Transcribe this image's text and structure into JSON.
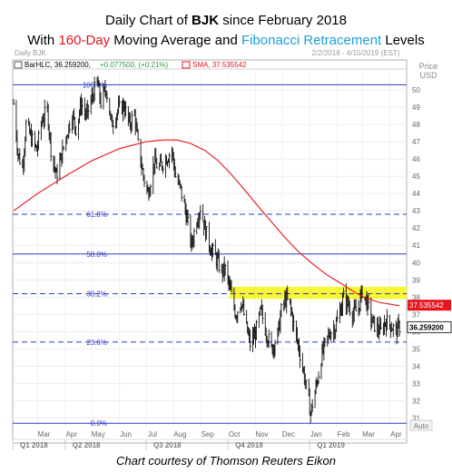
{
  "title": {
    "line1_prefix": "Daily Chart of ",
    "ticker": "BJK",
    "line1_suffix": " since February 2018",
    "line2_prefix": "With ",
    "sma_label": "160-Day",
    "line2_mid": " Moving Average and ",
    "fib_label": "Fibonacci Retracement",
    "line2_suffix": " Levels",
    "red_color": "#e8141c",
    "blue_color": "#1f9ed8"
  },
  "panel": {
    "name": "Daily BJK",
    "date_range": "2/2/2018 - 4/15/2019 (EST)",
    "price_header": "Price",
    "currency": "USD",
    "auto": "Auto"
  },
  "legend": {
    "series": "BarHLC, 36.259200, ",
    "change": "+0.077500, (+0.21%)",
    "sma": "SMA, 37.535542"
  },
  "caption": "Chart courtesy of Thomson Reuters Eikon",
  "chart_data": {
    "type": "line",
    "y_ticks": [
      31,
      32,
      33,
      34,
      35,
      36,
      37,
      38,
      39,
      40,
      41,
      42,
      43,
      44,
      45,
      46,
      47,
      48,
      49,
      50
    ],
    "ylim": [
      30.5,
      51
    ],
    "x_months": [
      "Mar",
      "Apr",
      "May",
      "Jun",
      "Jul",
      "Aug",
      "Sep",
      "Oct",
      "Nov",
      "Dec",
      "Jan",
      "Feb",
      "Mar",
      "Apr"
    ],
    "x_quarters": [
      "Q1 2018",
      "Q2 2018",
      "Q3 2018",
      "Q4 2018",
      "Q1 2019"
    ],
    "fib_levels": [
      {
        "label": "100.0%",
        "value": 50.3
      },
      {
        "label": "61.8%",
        "value": 42.8
      },
      {
        "label": "50.0%",
        "value": 40.5
      },
      {
        "label": "38.2%",
        "value": 38.2
      },
      {
        "label": "23.6%",
        "value": 35.4
      },
      {
        "label": "0.0%",
        "value": 30.7
      }
    ],
    "highlight_zone": [
      37.9,
      38.6
    ],
    "last_price": 36.2592,
    "sma_last": 37.535542,
    "price_series": [
      [
        "2018-02-02",
        49.2
      ],
      [
        "2018-02-07",
        46.3
      ],
      [
        "2018-02-12",
        45.5
      ],
      [
        "2018-02-16",
        48.0
      ],
      [
        "2018-02-22",
        47.2
      ],
      [
        "2018-02-28",
        46.5
      ],
      [
        "2018-03-06",
        48.3
      ],
      [
        "2018-03-12",
        48.8
      ],
      [
        "2018-03-16",
        46.6
      ],
      [
        "2018-03-22",
        45.0
      ],
      [
        "2018-03-28",
        46.2
      ],
      [
        "2018-04-03",
        47.5
      ],
      [
        "2018-04-09",
        48.6
      ],
      [
        "2018-04-13",
        47.8
      ],
      [
        "2018-04-19",
        49.2
      ],
      [
        "2018-04-25",
        48.5
      ],
      [
        "2018-05-01",
        49.5
      ],
      [
        "2018-05-07",
        50.5
      ],
      [
        "2018-05-11",
        49.3
      ],
      [
        "2018-05-17",
        50.1
      ],
      [
        "2018-05-23",
        48.0
      ],
      [
        "2018-05-30",
        48.8
      ],
      [
        "2018-06-06",
        49.1
      ],
      [
        "2018-06-12",
        48.0
      ],
      [
        "2018-06-18",
        48.6
      ],
      [
        "2018-06-22",
        46.8
      ],
      [
        "2018-06-28",
        45.0
      ],
      [
        "2018-07-03",
        44.0
      ],
      [
        "2018-07-10",
        45.8
      ],
      [
        "2018-07-16",
        45.5
      ],
      [
        "2018-07-23",
        46.0
      ],
      [
        "2018-07-30",
        46.5
      ],
      [
        "2018-08-03",
        45.0
      ],
      [
        "2018-08-09",
        44.2
      ],
      [
        "2018-08-15",
        42.8
      ],
      [
        "2018-08-21",
        41.0
      ],
      [
        "2018-08-27",
        42.5
      ],
      [
        "2018-08-31",
        43.2
      ],
      [
        "2018-09-06",
        41.8
      ],
      [
        "2018-09-12",
        40.8
      ],
      [
        "2018-09-18",
        40.2
      ],
      [
        "2018-09-24",
        39.5
      ],
      [
        "2018-09-28",
        39.6
      ],
      [
        "2018-10-04",
        38.3
      ],
      [
        "2018-10-10",
        37.0
      ],
      [
        "2018-10-16",
        37.8
      ],
      [
        "2018-10-22",
        36.2
      ],
      [
        "2018-10-26",
        35.3
      ],
      [
        "2018-11-01",
        35.9
      ],
      [
        "2018-11-07",
        37.2
      ],
      [
        "2018-11-13",
        36.0
      ],
      [
        "2018-11-19",
        35.0
      ],
      [
        "2018-11-26",
        35.8
      ],
      [
        "2018-11-30",
        37.2
      ],
      [
        "2018-12-05",
        37.9
      ],
      [
        "2018-12-10",
        37.5
      ],
      [
        "2018-12-14",
        36.4
      ],
      [
        "2018-12-20",
        35.0
      ],
      [
        "2018-12-26",
        33.4
      ],
      [
        "2019-01-02",
        31.3
      ],
      [
        "2019-01-04",
        31.8
      ],
      [
        "2019-01-09",
        33.0
      ],
      [
        "2019-01-14",
        34.5
      ],
      [
        "2019-01-18",
        35.2
      ],
      [
        "2019-01-24",
        36.0
      ],
      [
        "2019-01-30",
        36.3
      ],
      [
        "2019-02-04",
        37.2
      ],
      [
        "2019-02-08",
        38.0
      ],
      [
        "2019-02-13",
        37.6
      ],
      [
        "2019-02-19",
        37.0
      ],
      [
        "2019-02-25",
        37.4
      ],
      [
        "2019-03-01",
        38.4
      ],
      [
        "2019-03-06",
        37.7
      ],
      [
        "2019-03-12",
        36.6
      ],
      [
        "2019-03-18",
        36.2
      ],
      [
        "2019-03-22",
        36.0
      ],
      [
        "2019-03-27",
        36.6
      ],
      [
        "2019-04-02",
        36.4
      ],
      [
        "2019-04-08",
        36.0
      ],
      [
        "2019-04-12",
        36.3
      ]
    ],
    "sma_series": [
      [
        "2018-02-02",
        43.0
      ],
      [
        "2018-03-01",
        44.0
      ],
      [
        "2018-04-01",
        45.0
      ],
      [
        "2018-05-01",
        45.9
      ],
      [
        "2018-06-01",
        46.6
      ],
      [
        "2018-07-01",
        47.0
      ],
      [
        "2018-07-20",
        47.1
      ],
      [
        "2018-08-05",
        47.1
      ],
      [
        "2018-08-20",
        46.9
      ],
      [
        "2018-09-05",
        46.5
      ],
      [
        "2018-09-20",
        45.9
      ],
      [
        "2018-10-05",
        45.1
      ],
      [
        "2018-10-20",
        44.2
      ],
      [
        "2018-11-05",
        43.2
      ],
      [
        "2018-11-20",
        42.3
      ],
      [
        "2018-12-05",
        41.4
      ],
      [
        "2018-12-20",
        40.6
      ],
      [
        "2019-01-05",
        39.9
      ],
      [
        "2019-01-20",
        39.3
      ],
      [
        "2019-02-05",
        38.8
      ],
      [
        "2019-02-20",
        38.3
      ],
      [
        "2019-03-05",
        37.95
      ],
      [
        "2019-03-20",
        37.7
      ],
      [
        "2019-04-12",
        37.5
      ]
    ]
  }
}
